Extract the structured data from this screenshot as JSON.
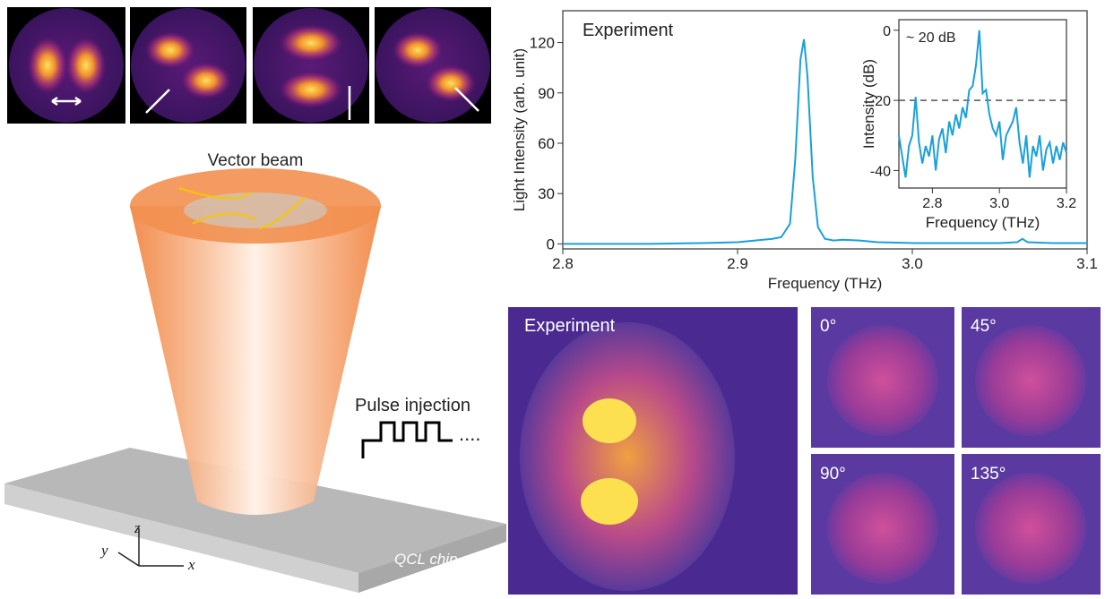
{
  "chart_data": [
    {
      "type": "line",
      "annotation": "Experiment",
      "xlabel": "Frequency (THz)",
      "ylabel": "Light Intensity (arb. unit)",
      "x": [
        2.8,
        2.85,
        2.88,
        2.9,
        2.91,
        2.92,
        2.925,
        2.93,
        2.933,
        2.936,
        2.938,
        2.94,
        2.943,
        2.946,
        2.95,
        2.955,
        2.96,
        2.97,
        2.98,
        3.0,
        3.03,
        3.05,
        3.06,
        3.063,
        3.066,
        3.08,
        3.1
      ],
      "series": [
        {
          "color": "#1aa0db",
          "values": [
            0,
            0,
            0.5,
            1,
            2,
            3,
            4,
            12,
            50,
            110,
            122,
            100,
            40,
            10,
            3,
            2,
            2.5,
            2,
            1,
            0.5,
            0.5,
            0.5,
            1,
            3,
            1,
            0.5,
            0.5
          ]
        }
      ],
      "xlim": [
        2.8,
        3.1
      ],
      "xticks": [
        2.8,
        2.9,
        {
          "value": 3,
          "label": "3.0"
        },
        3.1
      ],
      "ylim": [
        -3,
        139
      ],
      "yticks": [
        0,
        30,
        60,
        90,
        120
      ]
    },
    {
      "type": "line",
      "annotation": "~ 20 dB",
      "xlabel": "Frequency (THz)",
      "ylabel": "Intensity (dB)",
      "x": [
        2.7,
        2.71,
        2.72,
        2.73,
        2.74,
        2.75,
        2.76,
        2.77,
        2.78,
        2.79,
        2.8,
        2.81,
        2.82,
        2.83,
        2.84,
        2.85,
        2.86,
        2.87,
        2.88,
        2.89,
        2.9,
        2.91,
        2.92,
        2.93,
        2.94,
        2.95,
        2.96,
        2.97,
        2.98,
        2.99,
        3.0,
        3.01,
        3.02,
        3.03,
        3.04,
        3.05,
        3.06,
        3.07,
        3.08,
        3.09,
        3.1,
        3.11,
        3.12,
        3.13,
        3.14,
        3.15,
        3.16,
        3.17,
        3.18,
        3.19,
        3.2
      ],
      "series": [
        {
          "color": "#1aa0db",
          "values": [
            -30,
            -36,
            -42,
            -33,
            -30,
            -19,
            -32,
            -38,
            -33,
            -36,
            -30,
            -40,
            -31,
            -28,
            -35,
            -26,
            -30,
            -24,
            -28,
            -22,
            -25,
            -17,
            -16,
            -10,
            0,
            -18,
            -17,
            -24,
            -28,
            -30,
            -26,
            -37,
            -30,
            -28,
            -26,
            -22,
            -32,
            -38,
            -30,
            -42,
            -33,
            -36,
            -30,
            -40,
            -34,
            -32,
            -38,
            -33,
            -37,
            -32,
            -35
          ]
        }
      ],
      "hline": -20,
      "xlim": [
        2.7,
        3.2
      ],
      "xticks": [
        2.8,
        {
          "value": 3,
          "label": "3.0"
        },
        3.2
      ],
      "ylim": [
        -45,
        3
      ],
      "yticks": [
        -40,
        -20,
        0
      ]
    }
  ],
  "labels": {
    "vector_beam": "Vector beam",
    "pulse_injection": "Pulse injection",
    "dots": "....",
    "chip": "QCL chip",
    "axis_x": "x",
    "axis_y": "y",
    "axis_z": "z",
    "experiment_image": "Experiment",
    "angles": [
      "0°",
      "45°",
      "90°",
      "135°"
    ]
  }
}
